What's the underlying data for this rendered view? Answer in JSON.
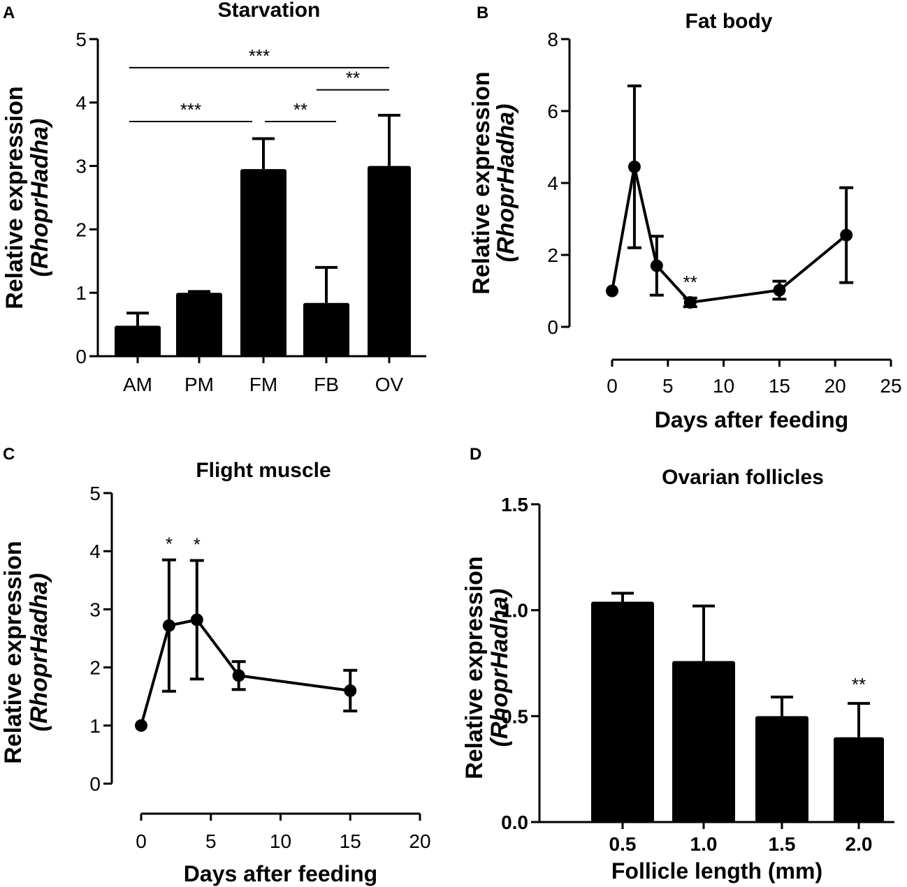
{
  "chart_data": [
    {
      "panel": "A",
      "type": "bar",
      "title": "Starvation",
      "ylabel": "Relative expression",
      "ylabel_italic": "(RhoprHadha)",
      "xlabel": "",
      "categories": [
        "AM",
        "PM",
        "FM",
        "FB",
        "OV"
      ],
      "values": [
        0.48,
        1.0,
        2.95,
        0.84,
        3.0
      ],
      "errors": [
        0.2,
        0.02,
        0.48,
        0.56,
        0.8
      ],
      "ylim": [
        0,
        5
      ],
      "yticks": [
        "0",
        "1",
        "2",
        "3",
        "4",
        "5"
      ],
      "significance": [
        {
          "from": "AM",
          "to": "FM",
          "label": "***",
          "y": 3.7
        },
        {
          "from": "FM",
          "to": "FB",
          "label": "**",
          "y": 3.7
        },
        {
          "from": "FB",
          "to": "OV",
          "label": "**",
          "y": 4.2
        },
        {
          "from": "AM",
          "to": "OV",
          "label": "***",
          "y": 4.55
        }
      ]
    },
    {
      "panel": "B",
      "type": "line",
      "title": "Fat body",
      "ylabel": "Relative expression",
      "ylabel_italic": "(RhoprHadha)",
      "xlabel": "Days after feeding",
      "x": [
        0,
        2,
        4,
        7,
        15,
        21
      ],
      "y": [
        1.0,
        4.45,
        1.7,
        0.68,
        1.02,
        2.55
      ],
      "errors": [
        0,
        2.25,
        0.82,
        0.12,
        0.25,
        1.32
      ],
      "xlim": [
        0,
        25
      ],
      "ylim": [
        0,
        8
      ],
      "xticks": [
        "0",
        "5",
        "10",
        "15",
        "20",
        "25"
      ],
      "yticks": [
        "0",
        "2",
        "4",
        "6",
        "8"
      ],
      "annotations": [
        {
          "x": 7,
          "label": "**"
        }
      ]
    },
    {
      "panel": "C",
      "type": "line",
      "title": "Flight muscle",
      "ylabel": "Relative expression",
      "ylabel_italic": "(RhoprHadha)",
      "xlabel": "Days after feeding",
      "x": [
        0,
        2,
        4,
        7,
        15
      ],
      "y": [
        1.0,
        2.72,
        2.82,
        1.86,
        1.6
      ],
      "errors": [
        0,
        1.13,
        1.02,
        0.24,
        0.35
      ],
      "xlim": [
        0,
        20
      ],
      "ylim": [
        0,
        5
      ],
      "xticks": [
        "0",
        "5",
        "10",
        "15",
        "20"
      ],
      "yticks": [
        "0",
        "1",
        "2",
        "3",
        "4",
        "5"
      ],
      "annotations": [
        {
          "x": 2,
          "label": "*"
        },
        {
          "x": 4,
          "label": "*"
        }
      ]
    },
    {
      "panel": "D",
      "type": "bar",
      "title": "Ovarian follicles",
      "ylabel": "Relative expression",
      "ylabel_italic": "(RhoprHadha)",
      "xlabel": "Follicle length (mm)",
      "categories": [
        "0.5",
        "1.0",
        "1.5",
        "2.0"
      ],
      "values": [
        1.04,
        0.76,
        0.5,
        0.4
      ],
      "errors": [
        0.04,
        0.26,
        0.09,
        0.16
      ],
      "ylim": [
        0,
        1.5
      ],
      "yticks": [
        "0.0",
        "0.5",
        "1.0",
        "1.5"
      ],
      "annotations": [
        {
          "category": "2.0",
          "label": "**"
        }
      ]
    }
  ]
}
